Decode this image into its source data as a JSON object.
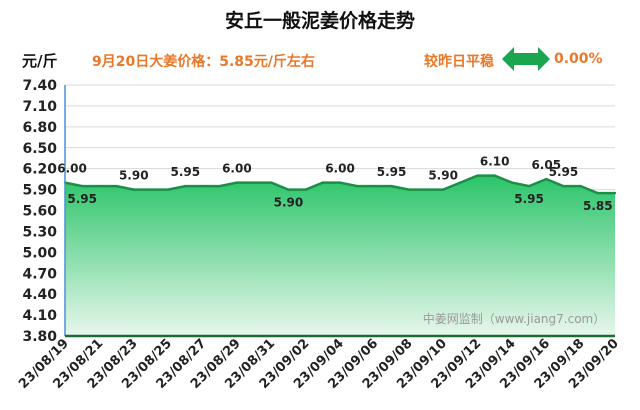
{
  "header": {
    "title": "安丘一般泥姜价格走势",
    "unit": "元/斤",
    "price_note": "9月20日大姜价格：5.85元/斤左右",
    "compare_label": "较昨日平稳",
    "change_value": "0.00%"
  },
  "watermark": "中姜网监制（www.jiang7.com）",
  "colors": {
    "accent": "#e8782a",
    "area_top": "#2bc46a",
    "area_bottom": "#e8f7ec",
    "line": "#1a8f45",
    "arrow": "#19a64f"
  },
  "icons": {
    "change": "double-arrow-icon"
  },
  "chart_data": {
    "type": "area",
    "x": [
      "23/08/19",
      "23/08/20",
      "23/08/21",
      "23/08/22",
      "23/08/23",
      "23/08/24",
      "23/08/25",
      "23/08/26",
      "23/08/27",
      "23/08/28",
      "23/08/29",
      "23/08/30",
      "23/08/31",
      "23/09/01",
      "23/09/02",
      "23/09/03",
      "23/09/04",
      "23/09/05",
      "23/09/06",
      "23/09/07",
      "23/09/08",
      "23/09/09",
      "23/09/10",
      "23/09/11",
      "23/09/12",
      "23/09/13",
      "23/09/14",
      "23/09/15",
      "23/09/16",
      "23/09/17",
      "23/09/18",
      "23/09/19",
      "23/09/20"
    ],
    "values": [
      6.0,
      5.95,
      5.95,
      5.95,
      5.9,
      5.9,
      5.9,
      5.95,
      5.95,
      5.95,
      6.0,
      6.0,
      6.0,
      5.9,
      5.9,
      6.0,
      6.0,
      5.95,
      5.95,
      5.95,
      5.9,
      5.9,
      5.9,
      6.0,
      6.1,
      6.1,
      6.0,
      5.95,
      6.05,
      5.95,
      5.95,
      5.85,
      5.85
    ],
    "data_labels": [
      {
        "i": 0,
        "text": "6.00",
        "pos": "above"
      },
      {
        "i": 1,
        "text": "5.95",
        "pos": "below"
      },
      {
        "i": 4,
        "text": "5.90",
        "pos": "above"
      },
      {
        "i": 7,
        "text": "5.95",
        "pos": "above"
      },
      {
        "i": 10,
        "text": "6.00",
        "pos": "above"
      },
      {
        "i": 13,
        "text": "5.90",
        "pos": "below"
      },
      {
        "i": 16,
        "text": "6.00",
        "pos": "above"
      },
      {
        "i": 19,
        "text": "5.95",
        "pos": "above"
      },
      {
        "i": 22,
        "text": "5.90",
        "pos": "above"
      },
      {
        "i": 25,
        "text": "6.10",
        "pos": "above"
      },
      {
        "i": 27,
        "text": "5.95",
        "pos": "below"
      },
      {
        "i": 28,
        "text": "6.05",
        "pos": "above"
      },
      {
        "i": 29,
        "text": "5.95",
        "pos": "above"
      },
      {
        "i": 31,
        "text": "5.85",
        "pos": "below"
      }
    ],
    "x_tick_labels": [
      "23/08/19",
      "23/08/21",
      "23/08/23",
      "23/08/25",
      "23/08/27",
      "23/08/29",
      "23/08/31",
      "23/09/02",
      "23/09/04",
      "23/09/06",
      "23/09/08",
      "23/09/10",
      "23/09/12",
      "23/09/14",
      "23/09/16",
      "23/09/18",
      "23/09/20"
    ],
    "y_ticks": [
      3.8,
      4.1,
      4.4,
      4.7,
      5.0,
      5.3,
      5.6,
      5.9,
      6.2,
      6.5,
      6.8,
      7.1,
      7.4
    ],
    "ylim": [
      3.8,
      7.4
    ],
    "grid": true,
    "legend": "none"
  }
}
